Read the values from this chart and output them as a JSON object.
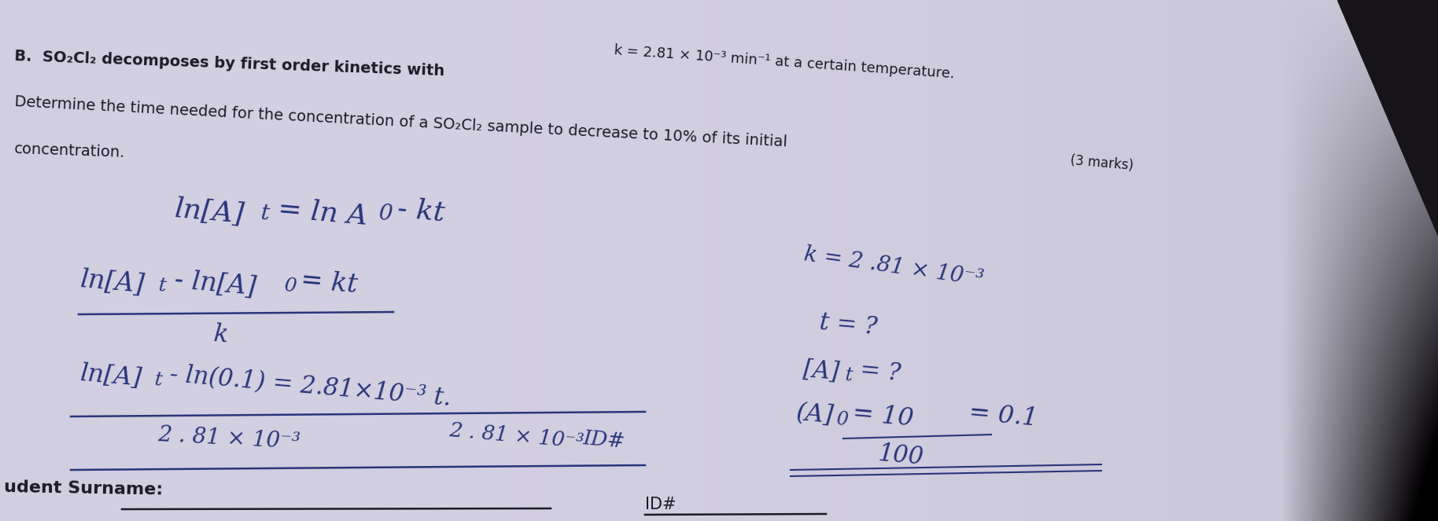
{
  "fig_width": 18.28,
  "fig_height": 6.63,
  "dpi": 100,
  "bg_left_color": "#2a2830",
  "paper_color_left": "#ccc9d8",
  "paper_color_center": "#d8d5e3",
  "paper_color_right": "#c5c2d0",
  "dark_corner_tr": "#1a1820",
  "dark_corner_br": "#1a1820",
  "text_color": "#1a1a28",
  "hw_color": "#2a357a",
  "printed_font_size": 14,
  "hw_font_size": 22,
  "lines": {
    "typed_line1a": "B.  SO₂Cl₂ decomposes by first order kinetics with ",
    "typed_line1b": "k = 2.81 × 10⁻³ min⁻¹ at a certain temperature.",
    "typed_line2": "Determine the time needed for the concentration of a SO₂Cl₂ sample to decrease to 10% of its initial",
    "typed_line3": "concentration.",
    "marks": "(3 marks)",
    "hw1": "ln[A]",
    "hw1t": "t",
    "hw1b": " = ln A",
    "hw1b0": "0",
    "hw1c": " - kt",
    "hw2a": "ln[A]",
    "hw2at": "t",
    "hw2b": " - ln[A]",
    "hw2b0": "0",
    "hw2c": " = kt",
    "hw3": "k",
    "hw4": "ln[A]",
    "hw4t": "t",
    "hw4b": " - ln(0.1) = 2.81×10⁻³ t.",
    "hw5a": "2.81 × 10⁻³",
    "hw5b": "2 . 81 × 10⁻³",
    "hw_id": "ID#",
    "hw_r1": "k = 2 .81 × 10⁻³",
    "hw_r2": "t = ?",
    "hw_r3a": "[A]",
    "hw_r3b": "t",
    "hw_r3c": " = ?",
    "hw_r4a": "(A]",
    "hw_r4b": "0",
    "hw_r4c": " = 10",
    "hw_r4d": "100",
    "hw_r4e": " = 0.1",
    "bottom": "udent Surname: "
  }
}
